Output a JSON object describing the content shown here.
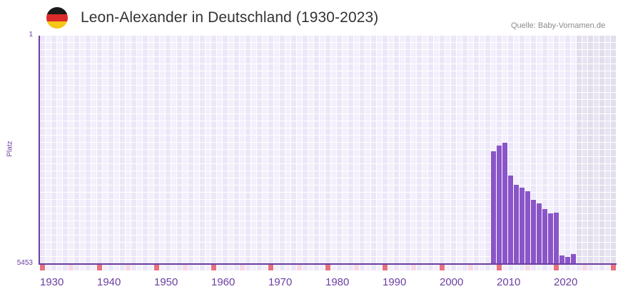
{
  "header": {
    "title": "Leon-Alexander in Deutschland (1930-2023)",
    "source": "Quelle: Baby-Vornamen.de",
    "flag": {
      "icon": "germany-flag-icon",
      "colors": [
        "#1a1a1a",
        "#dd2a2a",
        "#f5c518"
      ]
    }
  },
  "colors": {
    "bar": "#8a55c8",
    "axis": "#6b3fa0",
    "grid_a": "#ece7f8",
    "grid_b": "#f3f0fb",
    "future_a": "#e2deed",
    "future_b": "#e8e4f1",
    "marker_decade": "#e6717c",
    "marker_half": "#f6d9e3",
    "marker_a": "#ece7f8",
    "marker_b": "#f3f0fb"
  },
  "chart_data": {
    "type": "bar",
    "title": "Leon-Alexander in Deutschland (1930-2023)",
    "xlabel": "",
    "ylabel": "Platz",
    "y_inverted": true,
    "ylim": [
      1,
      5453
    ],
    "y_ticks": [
      "1",
      "5453"
    ],
    "x_range": [
      1930,
      2030
    ],
    "x_ticks": [
      "1930",
      "1940",
      "1950",
      "1960",
      "1970",
      "1980",
      "1990",
      "2000",
      "2010",
      "2020"
    ],
    "grid": true,
    "future_shaded_from": 2024,
    "categories": [
      2009,
      2010,
      2011,
      2012,
      2013,
      2014,
      2015,
      2016,
      2017,
      2018,
      2019,
      2020,
      2021,
      2022,
      2023
    ],
    "values": [
      2756,
      2625,
      2557,
      3340,
      3557,
      3630,
      3715,
      3920,
      4005,
      4141,
      4243,
      4226,
      5249,
      5283,
      5215
    ]
  }
}
